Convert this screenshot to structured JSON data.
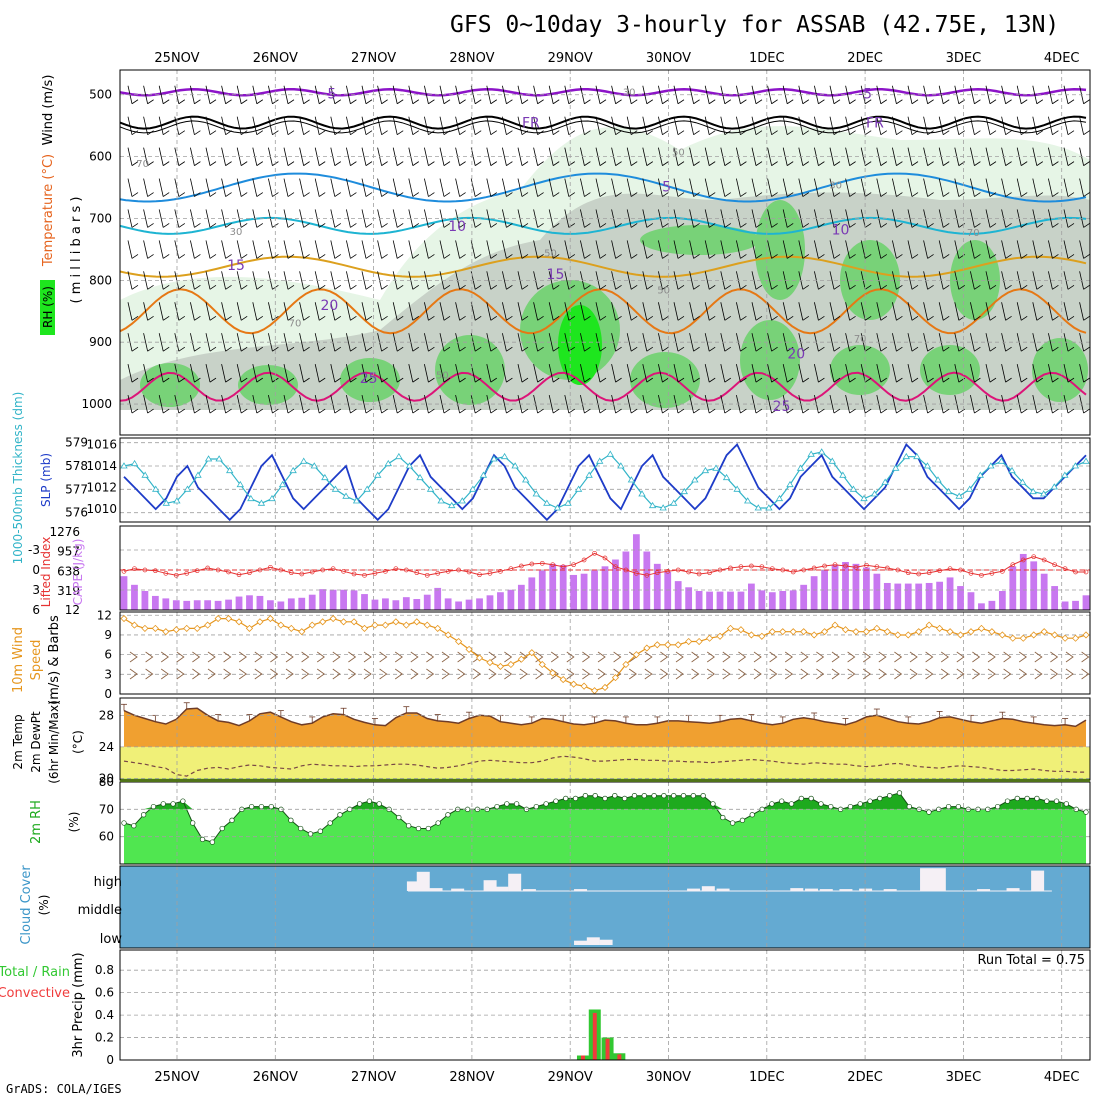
{
  "title": "GFS 0~10day 3-hourly for ASSAB (42.75E, 13N)",
  "footer": "GrADS: COLA/IGES",
  "colors": {
    "bg": "#ffffff",
    "grid": "#a0a0a0",
    "rh_light": "#e6f5e6",
    "rh_mid": "#c8d2c8",
    "rh_green": "#78d278",
    "rh_bright": "#1ee61e",
    "slp": "#1e3cc8",
    "thickness": "#32b4c8",
    "lifted": "#e63232",
    "cape": "#c878f0",
    "wind_speed": "#e6961e",
    "barbs": "#8c6446",
    "temp": "#f0a030",
    "temp_max": "#e65a14",
    "dewpt_fill": "#f0f078",
    "dewpt_low": "#a0e632",
    "rh2m_fill": "#50e650",
    "rh2m_dark": "#1eaa1e",
    "cloud": "#64aad2",
    "cloud_bar": "#f5f0f5",
    "precip_total": "#32c832",
    "precip_conv": "#f03c3c"
  },
  "chart_data": [
    {
      "type": "heatmap",
      "panel": "upper-air",
      "x_dates": [
        "25NOV",
        "26NOV",
        "27NOV",
        "28NOV",
        "29NOV",
        "30NOV",
        "1DEC",
        "2DEC",
        "3DEC",
        "4DEC"
      ],
      "ylabel_wind": "Wind (m/s)",
      "ylabel_temp": "Temperature (°C)",
      "ylabel_pressure": "( m i l l i b a r s )",
      "ylabel_rh": "RH (%)",
      "y_ticks": [
        500,
        600,
        700,
        800,
        900,
        1000
      ],
      "ylim": [
        460,
        1050
      ],
      "isotherm_labels": [
        {
          "text": "-5",
          "level": 498,
          "day": 1.55
        },
        {
          "text": "-5",
          "level": 498,
          "day": 7.0
        },
        {
          "text": "FR",
          "level": 545,
          "day": 3.6
        },
        {
          "text": "FR",
          "level": 545,
          "day": 7.1
        },
        {
          "text": "5",
          "level": 648,
          "day": 4.98
        },
        {
          "text": "10",
          "level": 712,
          "day": 2.85
        },
        {
          "text": "10",
          "level": 718,
          "day": 6.75
        },
        {
          "text": "15",
          "level": 775,
          "day": 0.6
        },
        {
          "text": "15",
          "level": 790,
          "day": 3.85
        },
        {
          "text": "20",
          "level": 840,
          "day": 1.55
        },
        {
          "text": "20",
          "level": 918,
          "day": 6.3
        },
        {
          "text": "25",
          "level": 958,
          "day": 1.95
        },
        {
          "text": "25",
          "level": 1003,
          "day": 6.15
        }
      ],
      "rh_labels": [
        {
          "text": "30",
          "level": 495,
          "day": 4.6
        },
        {
          "text": "50",
          "level": 592,
          "day": 5.1
        },
        {
          "text": "70",
          "level": 610,
          "day": -0.35
        },
        {
          "text": "30",
          "level": 645,
          "day": 6.7
        },
        {
          "text": "30",
          "level": 720,
          "day": 0.6
        },
        {
          "text": "50",
          "level": 755,
          "day": 3.8
        },
        {
          "text": "70",
          "level": 722,
          "day": 8.1
        },
        {
          "text": "50",
          "level": 815,
          "day": 4.95
        },
        {
          "text": "70",
          "level": 868,
          "day": 1.2
        },
        {
          "text": "50",
          "level": 952,
          "day": 2.7
        },
        {
          "text": "70",
          "level": 893,
          "day": 6.95
        }
      ]
    },
    {
      "type": "line",
      "panel": "slp-thickness",
      "ylabel_left": "1000-500mb Thickness (dm)",
      "ylabel_right": "SLP (mb)",
      "thickness_ticks": [
        576,
        577,
        578,
        579
      ],
      "slp_ticks": [
        1010,
        1012,
        1014,
        1016
      ],
      "thickness_range": [
        575.6,
        579.2
      ],
      "slp_range": [
        1008.8,
        1016.6
      ],
      "slp": [
        1013,
        1012,
        1011,
        1010,
        1011,
        1013,
        1014,
        1012,
        1011,
        1010,
        1009,
        1010,
        1012,
        1014,
        1015,
        1013,
        1011,
        1010,
        1011,
        1012,
        1013,
        1014,
        1011,
        1010,
        1009,
        1010,
        1012,
        1014,
        1015,
        1013,
        1012,
        1011,
        1010,
        1011,
        1013,
        1015,
        1014,
        1012,
        1011,
        1010,
        1009,
        1010,
        1012,
        1014,
        1015,
        1013,
        1011,
        1010,
        1012,
        1014,
        1015,
        1013,
        1012,
        1011,
        1010,
        1011,
        1013,
        1015,
        1016,
        1014,
        1012,
        1011,
        1010,
        1011,
        1013,
        1014,
        1015,
        1013,
        1012,
        1011,
        1010,
        1011,
        1012,
        1014,
        1016,
        1015,
        1013,
        1012,
        1011,
        1010,
        1011,
        1013,
        1014,
        1015,
        1013,
        1012,
        1011,
        1011,
        1012,
        1013,
        1014,
        1015
      ],
      "thickness": [
        578.0,
        578.1,
        577.6,
        577.0,
        576.4,
        576.5,
        577.0,
        577.6,
        578.3,
        578.3,
        577.8,
        577.2,
        576.6,
        576.4,
        576.6,
        577.2,
        577.8,
        578.2,
        578.0,
        577.5,
        577.0,
        576.7,
        576.5,
        577.0,
        577.6,
        578.1,
        578.4,
        578.0,
        577.5,
        577.0,
        576.5,
        576.3,
        576.5,
        577.0,
        577.6,
        578.3,
        578.4,
        578.0,
        577.4,
        576.8,
        576.4,
        576.2,
        576.4,
        577.0,
        577.6,
        578.2,
        578.5,
        578.0,
        577.4,
        576.8,
        576.3,
        576.2,
        576.4,
        576.9,
        577.4,
        577.8,
        577.9,
        577.5,
        577.0,
        576.5,
        576.2,
        576.2,
        576.6,
        577.2,
        577.9,
        578.5,
        578.6,
        578.2,
        577.6,
        577.0,
        576.6,
        576.8,
        577.3,
        577.9,
        578.4,
        578.4,
        578.0,
        577.4,
        576.9,
        576.7,
        577.0,
        577.6,
        578.0,
        578.2,
        577.8,
        577.3,
        576.9,
        576.8,
        577.1,
        577.6,
        578.0,
        578.2
      ],
      "series": [
        {
          "name": "Thickness"
        },
        {
          "name": "SLP"
        }
      ]
    },
    {
      "type": "bar",
      "panel": "cape-lifted",
      "ylabel_left": "Lifted Index",
      "ylabel_right": "CAPE (J/kg)",
      "li_ticks": [
        -3,
        0,
        3,
        6
      ],
      "li_range": [
        -5.7,
        6
      ],
      "cape_ticks": [
        12,
        319,
        638,
        957,
        1276
      ],
      "cape_tick_labels": [
        "12",
        "319",
        "638",
        "957",
        "1276"
      ],
      "cape_range": [
        12,
        1276
      ],
      "cape": [
        560,
        420,
        320,
        240,
        200,
        170,
        160,
        170,
        170,
        160,
        180,
        230,
        250,
        240,
        170,
        150,
        200,
        210,
        260,
        350,
        340,
        340,
        330,
        270,
        180,
        200,
        170,
        220,
        190,
        260,
        370,
        200,
        150,
        180,
        200,
        250,
        300,
        340,
        420,
        540,
        650,
        760,
        740,
        580,
        600,
        650,
        720,
        830,
        960,
        1240,
        960,
        760,
        630,
        480,
        380,
        320,
        310,
        310,
        310,
        310,
        440,
        330,
        300,
        320,
        330,
        420,
        560,
        660,
        740,
        790,
        760,
        700,
        600,
        450,
        440,
        440,
        440,
        450,
        470,
        540,
        400,
        300,
        120,
        160,
        320,
        720,
        920,
        800,
        600,
        400,
        150,
        160,
        250
      ],
      "lifted_index": [
        0.2,
        -0.2,
        0.0,
        0.1,
        0.5,
        0.8,
        0.5,
        0.1,
        -0.3,
        0.0,
        0.3,
        0.7,
        0.4,
        0.0,
        -0.4,
        0.0,
        0.4,
        0.6,
        0.3,
        0.0,
        -0.2,
        0.2,
        0.6,
        0.8,
        0.5,
        0.2,
        -0.2,
        0.0,
        0.4,
        0.8,
        0.5,
        0.2,
        0.0,
        0.3,
        0.7,
        0.5,
        0.2,
        -0.2,
        -0.6,
        -0.9,
        -1.0,
        -0.8,
        -0.5,
        -0.8,
        -1.5,
        -2.5,
        -1.8,
        -0.5,
        0.0,
        0.5,
        0.8,
        0.4,
        0.2,
        0.0,
        0.3,
        0.6,
        0.4,
        0.0,
        -0.3,
        -0.5,
        -0.6,
        -0.5,
        -0.2,
        0.0,
        0.3,
        0.0,
        -0.3,
        -0.6,
        -0.8,
        -0.6,
        -0.4,
        -0.7,
        -0.5,
        -0.3,
        0.0,
        0.4,
        0.6,
        0.4,
        0.1,
        -0.2,
        0.0,
        0.5,
        0.8,
        0.5,
        0.2,
        -0.8,
        -1.5,
        -2.0,
        -1.5,
        -0.8,
        -0.2,
        0.3,
        0.3
      ],
      "series": [
        {
          "name": "Lifted Index"
        },
        {
          "name": "CAPE (J/kg)"
        }
      ]
    },
    {
      "type": "line",
      "panel": "wind-10m",
      "ylabel": "10m Wind Speed (m/s) & Barbs",
      "ylabel_line1": "10m Wind",
      "ylabel_line2": "Speed",
      "ylabel_line3": "(m/s) & Barbs",
      "y_ticks": [
        0,
        3,
        6,
        9,
        12
      ],
      "ylim": [
        0,
        12.5
      ],
      "speed": [
        11.5,
        10.5,
        10.0,
        10.0,
        9.5,
        9.8,
        10.0,
        10.0,
        10.5,
        11.5,
        11.5,
        11.0,
        10.0,
        11.0,
        11.5,
        10.5,
        10.0,
        9.5,
        10.5,
        11.0,
        11.5,
        11.0,
        11.0,
        10.0,
        10.5,
        10.5,
        11.0,
        10.5,
        11.0,
        10.5,
        10.0,
        9.0,
        8.0,
        6.8,
        5.5,
        4.8,
        4.2,
        4.5,
        5.3,
        6.3,
        4.5,
        3.2,
        2.2,
        1.5,
        1.2,
        0.5,
        1.0,
        2.5,
        4.5,
        6.0,
        7.0,
        7.5,
        7.5,
        7.5,
        8.0,
        8.0,
        8.5,
        8.8,
        10.0,
        9.8,
        9.0,
        8.8,
        9.5,
        9.5,
        9.5,
        9.5,
        9.0,
        9.5,
        10.5,
        9.8,
        9.5,
        9.5,
        10.0,
        9.5,
        9.0,
        9.0,
        9.5,
        10.5,
        10.0,
        9.5,
        9.0,
        9.5,
        10.0,
        9.5,
        9.0,
        8.5,
        8.5,
        9.0,
        9.5,
        9.0,
        8.5,
        8.5,
        9.0
      ],
      "series": [
        {
          "name": "10m Wind Speed"
        }
      ]
    },
    {
      "type": "area",
      "panel": "temp-2m",
      "ylabel_line1": "2m Temp",
      "ylabel_line2": "2m DewPt",
      "ylabel_line3": "(6hr Min/Max)",
      "yunit": "(°C)",
      "y_ticks": [
        20,
        24,
        28
      ],
      "ylim": [
        19.8,
        30.2
      ],
      "temp": [
        28.6,
        28.0,
        27.6,
        27.2,
        26.9,
        27.5,
        28.8,
        28.9,
        28.0,
        27.3,
        27.1,
        26.7,
        27.3,
        28.2,
        28.4,
        27.8,
        27.2,
        26.8,
        27.0,
        27.8,
        28.2,
        28.1,
        27.5,
        27.1,
        26.8,
        26.7,
        27.7,
        28.3,
        28.3,
        27.6,
        27.3,
        27.2,
        27.0,
        27.6,
        28.0,
        27.9,
        27.2,
        27.0,
        26.8,
        27.0,
        27.6,
        27.5,
        27.2,
        26.9,
        26.8,
        27.0,
        27.4,
        27.3,
        27.0,
        26.8,
        26.8,
        27.0,
        27.3,
        27.3,
        27.2,
        27.1,
        27.0,
        27.2,
        27.5,
        27.6,
        27.3,
        27.0,
        26.8,
        27.0,
        27.5,
        27.7,
        27.5,
        27.2,
        27.0,
        26.8,
        27.2,
        27.8,
        28.0,
        27.6,
        27.2,
        27.0,
        26.9,
        27.2,
        27.7,
        27.8,
        27.5,
        27.2,
        27.0,
        27.3,
        27.6,
        27.5,
        27.2,
        27.0,
        26.8,
        26.7,
        26.8,
        26.6,
        27.4
      ],
      "dewpt": [
        22.2,
        22.0,
        21.8,
        21.5,
        21.3,
        20.5,
        20.3,
        21.0,
        21.3,
        21.4,
        21.2,
        21.5,
        21.7,
        21.6,
        21.4,
        21.3,
        21.2,
        21.6,
        21.8,
        21.7,
        21.6,
        21.6,
        21.5,
        21.6,
        21.6,
        21.7,
        21.8,
        21.8,
        21.7,
        21.5,
        21.3,
        21.4,
        21.6,
        21.9,
        22.2,
        22.3,
        22.2,
        22.1,
        22.0,
        22.0,
        22.2,
        22.6,
        22.8,
        22.7,
        22.5,
        22.2,
        22.2,
        22.3,
        22.4,
        22.4,
        22.3,
        22.3,
        22.2,
        22.2,
        22.1,
        22.1,
        22.0,
        22.1,
        22.2,
        22.3,
        22.4,
        22.3,
        22.2,
        22.0,
        21.9,
        21.8,
        22.0,
        21.9,
        21.8,
        21.8,
        21.6,
        21.5,
        21.6,
        21.8,
        21.9,
        21.7,
        21.5,
        21.4,
        21.3,
        21.5,
        21.6,
        21.5,
        21.4,
        21.2,
        21.0,
        21.0,
        21.1,
        21.2,
        21.0,
        20.9,
        20.9,
        20.8,
        20.8
      ],
      "series": [
        {
          "name": "2m Temp"
        },
        {
          "name": "2m DewPt"
        }
      ]
    },
    {
      "type": "area",
      "panel": "rh-2m",
      "ylabel": "2m RH",
      "yunit": "(%)",
      "y_ticks": [
        60,
        70,
        80
      ],
      "ylim": [
        50,
        80
      ],
      "rh": [
        65,
        64,
        68,
        71,
        72,
        72,
        73,
        65,
        59,
        58,
        63,
        66,
        70,
        71,
        71,
        71,
        70,
        66,
        63,
        61,
        62,
        65,
        68,
        70,
        72,
        73,
        72,
        70,
        67,
        64,
        63,
        63,
        65,
        68,
        70,
        70,
        70,
        70,
        71,
        72,
        72,
        70,
        71,
        72,
        73,
        74,
        74,
        75,
        75,
        74,
        75,
        74,
        75,
        75,
        75,
        75,
        75,
        75,
        75,
        75,
        72,
        67,
        65,
        66,
        68,
        70,
        72,
        73,
        72,
        74,
        74,
        72,
        71,
        70,
        71,
        72,
        73,
        74,
        75,
        76,
        71,
        70,
        69,
        70,
        71,
        71,
        70,
        70,
        70,
        71,
        73,
        74,
        74,
        74,
        73,
        73,
        72,
        70,
        69
      ],
      "series": [
        {
          "name": "2m RH"
        }
      ]
    },
    {
      "type": "bar",
      "panel": "cloud-cover",
      "ylabel": "Cloud Cover",
      "yunit": "(%)",
      "levels": [
        "high",
        "middle",
        "low"
      ],
      "high_bars": [
        {
          "day": 2.4,
          "pct": 40
        },
        {
          "day": 2.5,
          "pct": 80
        },
        {
          "day": 2.63,
          "pct": 12
        },
        {
          "day": 2.85,
          "pct": 10
        },
        {
          "day": 3.18,
          "pct": 45
        },
        {
          "day": 3.3,
          "pct": 18
        },
        {
          "day": 3.43,
          "pct": 72
        },
        {
          "day": 3.58,
          "pct": 8
        },
        {
          "day": 4.1,
          "pct": 8
        },
        {
          "day": 5.25,
          "pct": 10
        },
        {
          "day": 5.4,
          "pct": 20
        },
        {
          "day": 5.55,
          "pct": 10
        },
        {
          "day": 6.3,
          "pct": 12
        },
        {
          "day": 6.45,
          "pct": 10
        },
        {
          "day": 6.6,
          "pct": 8
        },
        {
          "day": 6.8,
          "pct": 8
        },
        {
          "day": 7.0,
          "pct": 10
        },
        {
          "day": 7.25,
          "pct": 8
        },
        {
          "day": 7.62,
          "pct": 95
        },
        {
          "day": 7.75,
          "pct": 95
        },
        {
          "day": 8.2,
          "pct": 8
        },
        {
          "day": 8.5,
          "pct": 12
        },
        {
          "day": 8.75,
          "pct": 85
        }
      ],
      "low_bars": [
        {
          "day": 4.1,
          "pct": 18
        },
        {
          "day": 4.23,
          "pct": 32
        },
        {
          "day": 4.36,
          "pct": 22
        }
      ]
    },
    {
      "type": "bar",
      "panel": "precip",
      "ylabel": "3hr Precip (mm)",
      "ylabel_left": "Total / Rain",
      "ylabel_left2": "Convective",
      "annotation": "Run Total = 0.75",
      "y_ticks": [
        0,
        0.2,
        0.4,
        0.6,
        0.8
      ],
      "ylim": [
        0,
        0.98
      ],
      "bars": [
        {
          "day": 4.13,
          "total": 0.04,
          "conv": 0.04
        },
        {
          "day": 4.25,
          "total": 0.45,
          "conv": 0.42
        },
        {
          "day": 4.38,
          "total": 0.2,
          "conv": 0.19
        },
        {
          "day": 4.5,
          "total": 0.06,
          "conv": 0.05
        }
      ]
    }
  ]
}
